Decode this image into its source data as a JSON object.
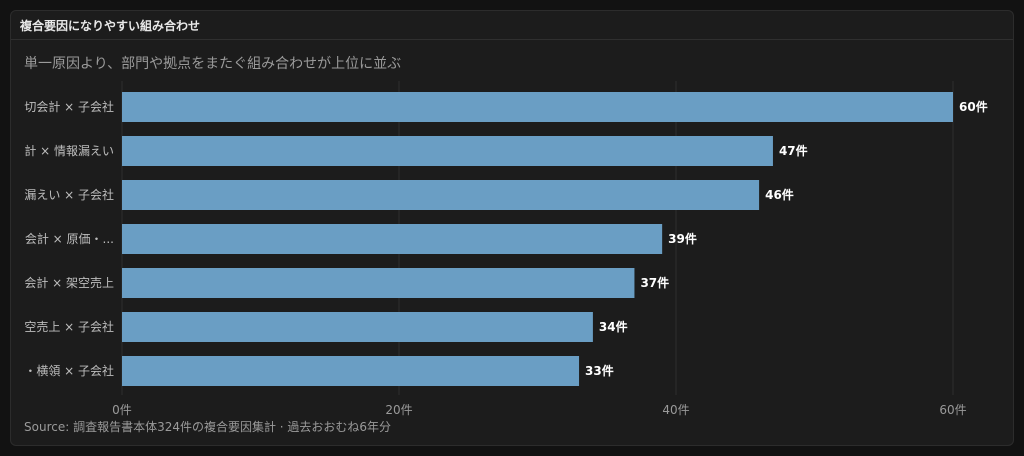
{
  "panel": {
    "title": "複合要因になりやすい組み合わせ"
  },
  "chart_data": {
    "type": "bar",
    "orientation": "horizontal",
    "title": "単一原因より、部門や拠点をまたぐ組み合わせが上位に並ぶ",
    "categories": [
      "切会計 × 子会社",
      "計 × 情報漏えい",
      "漏えい × 子会社",
      "会計 × 原価・...",
      "会計 × 架空売上",
      "空売上 × 子会社",
      "・横領 × 子会社"
    ],
    "values": [
      60,
      47,
      46,
      39,
      37,
      34,
      33
    ],
    "value_labels": [
      "60件",
      "47件",
      "46件",
      "39件",
      "37件",
      "34件",
      "33件"
    ],
    "xlim": [
      0,
      60
    ],
    "xticks": [
      0,
      20,
      40,
      60
    ],
    "xtick_labels": [
      "0件",
      "20件",
      "40件",
      "60件"
    ],
    "grid": true,
    "bar_color": "#6a9ec4",
    "source": "Source: 調査報告書本体324件の複合要因集計 · 過去おおむね6年分"
  }
}
